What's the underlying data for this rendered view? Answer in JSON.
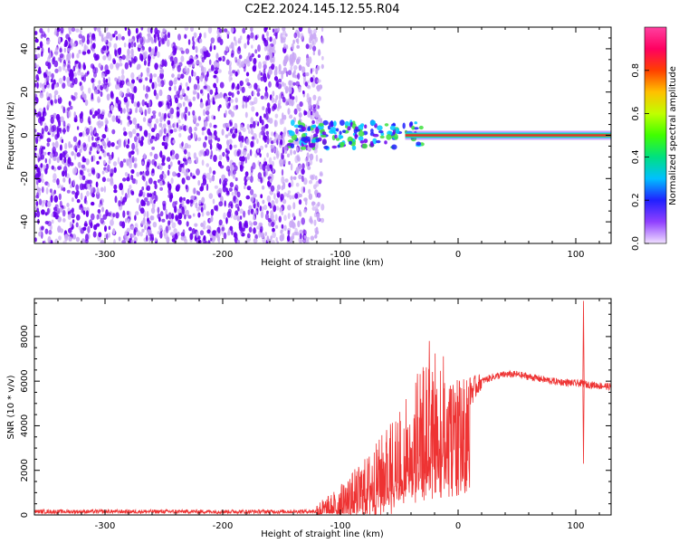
{
  "title": "C2E2.2024.145.12.55.R04",
  "colors": {
    "snr_line": "#ee3333",
    "scatter_main": "#6a00ee",
    "scatter_light": "#c9a8f5",
    "band_core": "#e03030",
    "band_mid": "#40e040",
    "band_edge": "#00c8ff"
  },
  "chart_data": [
    {
      "type": "heatmap",
      "xlabel": "Height of straight line (km)",
      "ylabel": "Frequency (Hz)",
      "xlim": [
        -360,
        130
      ],
      "ylim": [
        -50,
        50
      ],
      "x_ticks": [
        -300,
        -200,
        -100,
        0,
        100
      ],
      "y_ticks": [
        -40,
        -20,
        0,
        20,
        40
      ],
      "noise_region_x": [
        -360,
        -115
      ],
      "band_center_y": 0,
      "colorbar": {
        "label": "Normalized spectral amplitude",
        "range": [
          0.0,
          1.0
        ],
        "ticks": [
          "0.0",
          "0.2",
          "0.4",
          "0.6",
          "0.8"
        ],
        "colormap": [
          "#f0e0ff",
          "#9040ff",
          "#2020ff",
          "#00c0ff",
          "#00e080",
          "#40ff00",
          "#c0ff00",
          "#ffc000",
          "#ff4000",
          "#ff0060",
          "#ff40a0"
        ]
      }
    },
    {
      "type": "line",
      "xlabel": "Height of straight line (km)",
      "ylabel": "SNR (10 * v/v)",
      "xlim": [
        -360,
        130
      ],
      "ylim": [
        0,
        9700
      ],
      "x_ticks": [
        -300,
        -200,
        -100,
        0,
        100
      ],
      "y_ticks": [
        0,
        2000,
        4000,
        6000,
        8000
      ],
      "series": [
        {
          "x": [
            -360,
            -300,
            -200,
            -150,
            -120,
            -110,
            -100,
            -90,
            -80,
            -70,
            -60,
            -50,
            -45,
            -40,
            -35,
            -30,
            -25,
            -20,
            -15,
            -10,
            -5,
            0,
            10,
            20,
            30,
            40,
            50,
            60,
            70,
            80,
            90,
            100,
            104,
            106,
            108,
            110,
            120,
            130
          ],
          "y": [
            150,
            150,
            150,
            150,
            160,
            200,
            400,
            700,
            1000,
            1400,
            2000,
            2600,
            3000,
            3300,
            3600,
            3800,
            4000,
            4200,
            4400,
            4600,
            4800,
            5000,
            5500,
            6000,
            6200,
            6300,
            6300,
            6200,
            6100,
            6000,
            5950,
            5900,
            5900,
            5900,
            5850,
            5850,
            5800,
            5750
          ]
        }
      ],
      "annotations": [
        {
          "x": -25,
          "y": 7800
        },
        {
          "x": 106,
          "y": 9600
        },
        {
          "x": 106,
          "y": 2300
        }
      ]
    }
  ]
}
